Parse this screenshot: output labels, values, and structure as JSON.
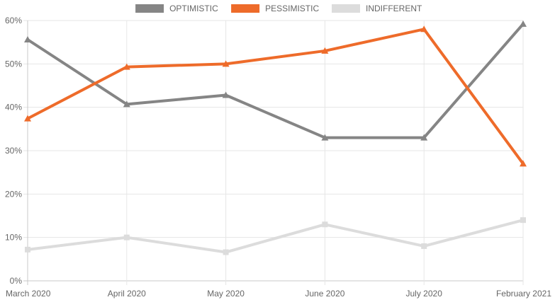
{
  "chart_data": {
    "type": "line",
    "title": "",
    "xlabel": "",
    "ylabel": "",
    "categories": [
      "March 2020",
      "April 2020",
      "May 2020",
      "June 2020",
      "July 2020",
      "February 2021"
    ],
    "ylim": [
      0,
      60
    ],
    "y_ticks": [
      0,
      10,
      20,
      30,
      40,
      50,
      60
    ],
    "y_tick_suffix": "%",
    "grid": true,
    "legend_position": "top",
    "series": [
      {
        "name": "OPTIMISTIC",
        "color": "#858585",
        "marker": "triangle",
        "values": [
          55.6,
          40.7,
          42.8,
          33.0,
          33.0,
          59.2
        ]
      },
      {
        "name": "PESSIMISTIC",
        "color": "#ee6b2a",
        "marker": "triangle",
        "values": [
          37.4,
          49.3,
          50.0,
          53.0,
          58.0,
          27.0
        ]
      },
      {
        "name": "INDIFFERENT",
        "color": "#dcdcdc",
        "marker": "square",
        "values": [
          7.2,
          10.0,
          6.6,
          13.0,
          8.0,
          14.0
        ]
      }
    ]
  }
}
